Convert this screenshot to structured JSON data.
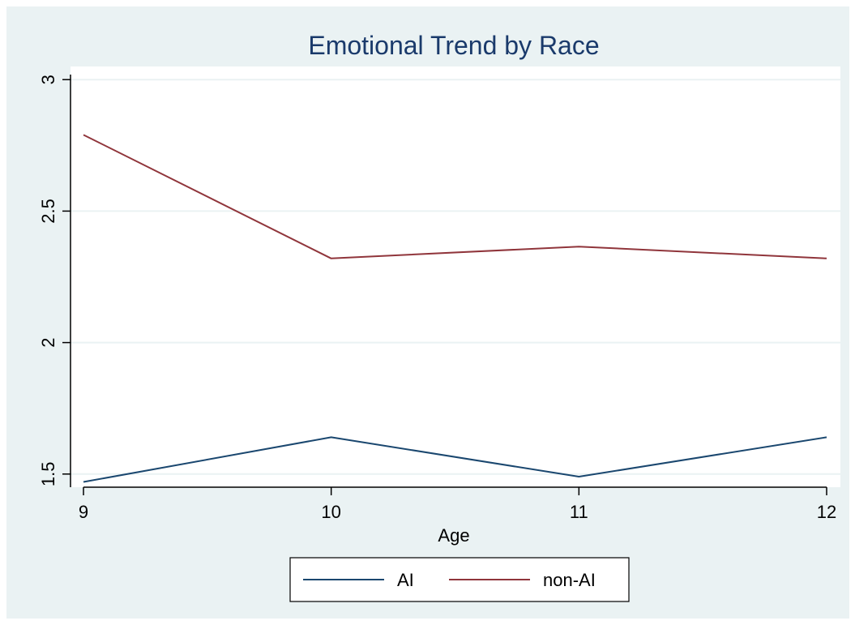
{
  "chart_data": {
    "type": "line",
    "title": "Emotional Trend by Race",
    "xlabel": "Age",
    "ylabel": "",
    "x": [
      9,
      10,
      11,
      12
    ],
    "xlim": [
      9,
      12
    ],
    "ylim": [
      1.45,
      3.05
    ],
    "xticks": [
      "9",
      "10",
      "11",
      "12"
    ],
    "yticks": [
      "1.5",
      "2",
      "2.5",
      "3"
    ],
    "grid": true,
    "legend_position": "bottom",
    "series": [
      {
        "name": "AI",
        "color": "#1a476f",
        "values": [
          1.47,
          1.64,
          1.49,
          1.64
        ]
      },
      {
        "name": "non-AI",
        "color": "#90353b",
        "values": [
          2.79,
          2.32,
          2.365,
          2.32
        ]
      }
    ],
    "colors": {
      "outer_background": "#eaf2f3",
      "plot_background": "#ffffff",
      "grid": "#eaf2f3",
      "title": "#1a3a6b"
    }
  }
}
